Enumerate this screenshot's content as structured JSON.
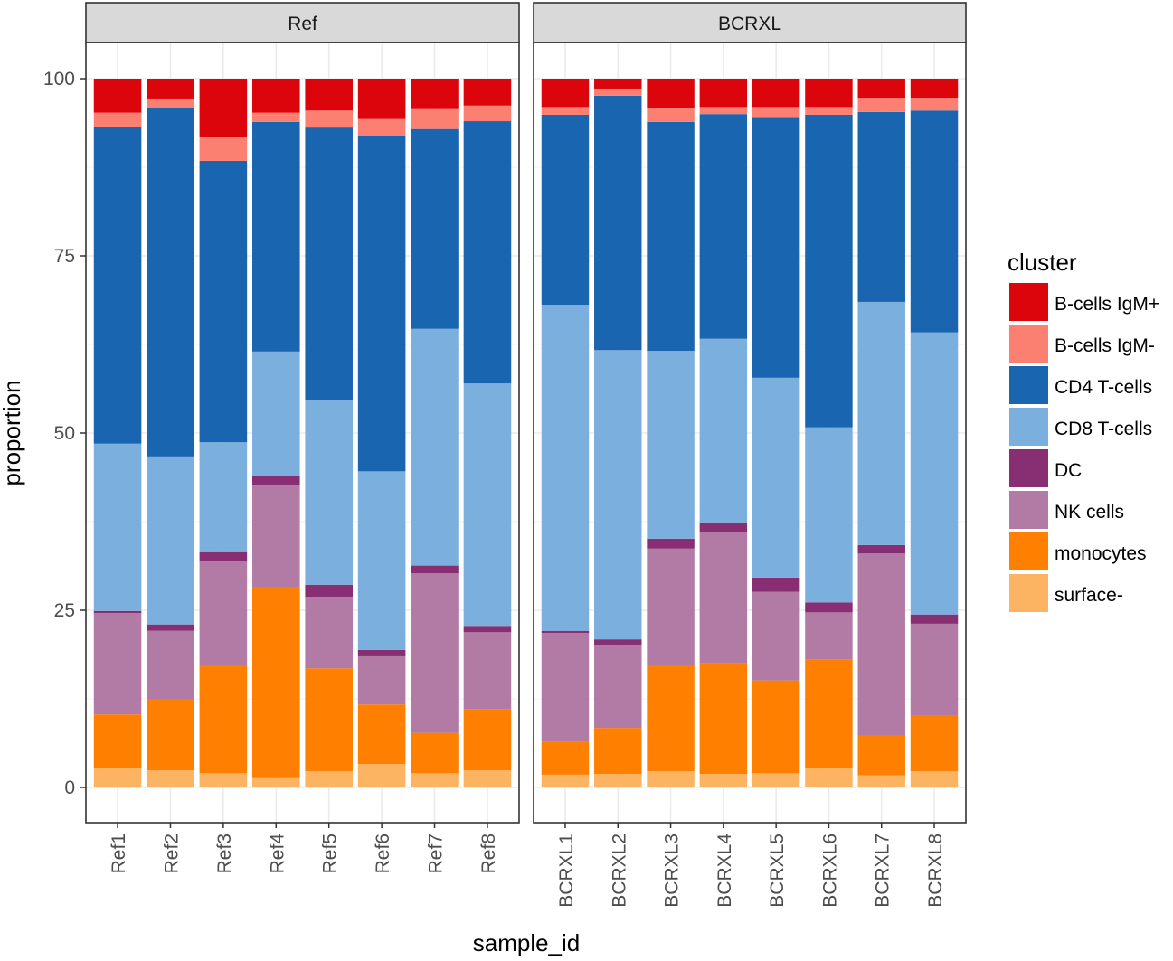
{
  "chart_data": {
    "type": "bar",
    "stacked": true,
    "facets": [
      {
        "label": "Ref",
        "categories": [
          "Ref1",
          "Ref2",
          "Ref3",
          "Ref4",
          "Ref5",
          "Ref6",
          "Ref7",
          "Ref8"
        ]
      },
      {
        "label": "BCRXL",
        "categories": [
          "BCRXL1",
          "BCRXL2",
          "BCRXL3",
          "BCRXL4",
          "BCRXL5",
          "BCRXL6",
          "BCRXL7",
          "BCRXL8"
        ]
      }
    ],
    "xlabel": "sample_id",
    "ylabel": "proportion",
    "ylim": [
      0,
      100
    ],
    "yticks": [
      0,
      25,
      50,
      75,
      100
    ],
    "grid": true,
    "legend": {
      "title": "cluster",
      "placement": "right"
    },
    "series": [
      {
        "name": "surface-",
        "color": "#FDB462",
        "values": [
          2.7,
          2.4,
          2.0,
          1.3,
          2.3,
          3.3,
          2.0,
          2.4,
          1.8,
          1.9,
          2.3,
          1.9,
          2.0,
          2.7,
          1.7,
          2.3
        ]
      },
      {
        "name": "monocytes",
        "color": "#FF7F00",
        "values": [
          7.6,
          10.1,
          15.1,
          26.9,
          14.5,
          8.4,
          5.7,
          8.6,
          4.6,
          6.5,
          14.8,
          15.6,
          13.1,
          15.4,
          5.7,
          7.9
        ]
      },
      {
        "name": "NK cells",
        "color": "#B17BA6",
        "values": [
          14.3,
          9.6,
          14.9,
          14.5,
          10.1,
          6.8,
          22.5,
          10.9,
          15.4,
          11.6,
          16.6,
          18.5,
          12.5,
          6.6,
          25.6,
          12.9
        ]
      },
      {
        "name": "DC",
        "color": "#882E72",
        "values": [
          0.3,
          0.9,
          1.2,
          1.2,
          1.7,
          0.9,
          1.1,
          0.9,
          0.3,
          0.9,
          1.4,
          1.4,
          2.0,
          1.4,
          1.2,
          1.3
        ]
      },
      {
        "name": "CD8 T-cells",
        "color": "#7BAFDE",
        "values": [
          23.6,
          23.7,
          15.5,
          17.6,
          26.0,
          25.2,
          33.4,
          34.2,
          46.0,
          40.8,
          26.5,
          25.9,
          28.2,
          24.7,
          34.3,
          39.8
        ]
      },
      {
        "name": "CD4 T-cells",
        "color": "#1965B0",
        "values": [
          44.7,
          49.2,
          39.7,
          32.4,
          38.5,
          47.4,
          28.2,
          37.0,
          26.8,
          35.9,
          32.3,
          31.7,
          36.8,
          44.1,
          26.8,
          31.3
        ]
      },
      {
        "name": "B-cells IgM-",
        "color": "#FB8072",
        "values": [
          2.0,
          1.3,
          3.3,
          1.3,
          2.4,
          2.3,
          2.8,
          2.2,
          1.1,
          1.0,
          2.0,
          1.0,
          1.4,
          1.1,
          2.0,
          1.8
        ]
      },
      {
        "name": "B-cells IgM+",
        "color": "#DC050C",
        "values": [
          4.8,
          2.8,
          8.3,
          4.8,
          4.5,
          5.7,
          4.3,
          3.8,
          4.0,
          1.4,
          4.1,
          4.0,
          4.0,
          4.0,
          2.7,
          2.7
        ]
      }
    ]
  }
}
